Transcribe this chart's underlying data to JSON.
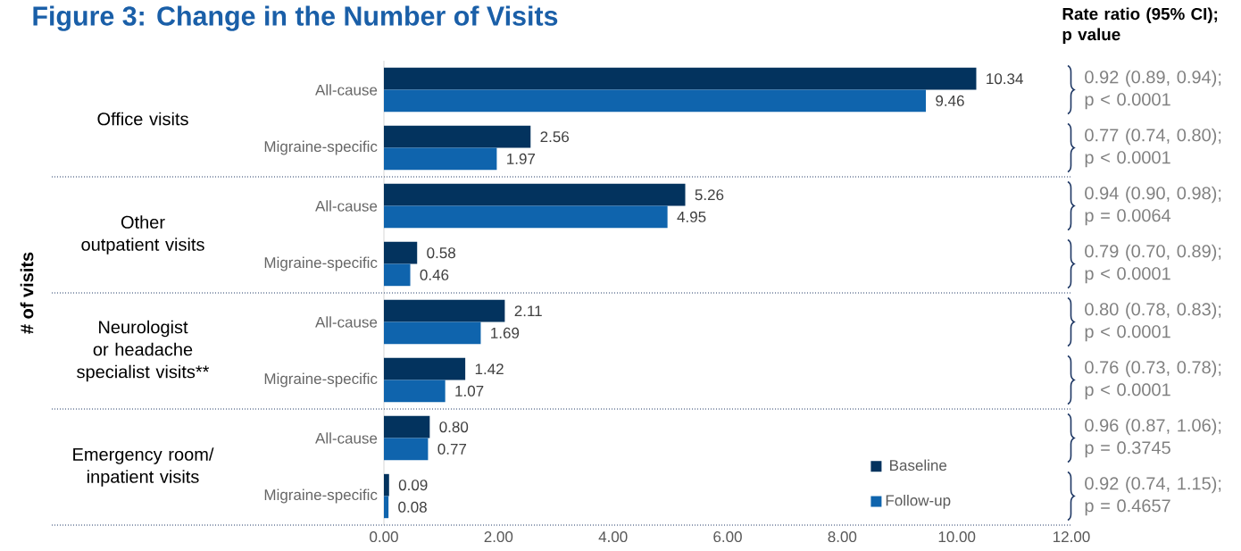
{
  "chart_data": {
    "type": "bar",
    "orientation": "horizontal",
    "title": "Figure 3: Change in the Number of Visits",
    "categories": [
      "All-cause",
      "Migraine-specific",
      "All-cause",
      "Migraine-specific",
      "All-cause",
      "Migraine-specific",
      "All-cause",
      "Migraine-specific"
    ],
    "series": [
      {
        "name": "Baseline",
        "color": "#03335e",
        "values": [
          10.34,
          2.56,
          5.26,
          0.58,
          2.11,
          1.42,
          0.8,
          0.09
        ],
        "value_labels": [
          "10.34",
          "2.56",
          "5.26",
          "0.58",
          "2.11",
          "1.42",
          "0.80",
          "0.09"
        ]
      },
      {
        "name": "Follow-up",
        "color": "#0f64ad",
        "values": [
          9.46,
          1.97,
          4.95,
          0.46,
          1.69,
          1.07,
          0.77,
          0.08
        ],
        "value_labels": [
          "9.46",
          "1.97",
          "4.95",
          "0.46",
          "1.69",
          "1.07",
          "0.77",
          "0.08"
        ]
      }
    ],
    "xlim": [
      0,
      12
    ],
    "xticks": [
      {
        "value": 0,
        "label": "0.00"
      },
      {
        "value": 2,
        "label": "2.00"
      },
      {
        "value": 4,
        "label": "4.00"
      },
      {
        "value": 6,
        "label": "6.00"
      },
      {
        "value": 8,
        "label": "8.00"
      },
      {
        "value": 10,
        "label": "10.00"
      },
      {
        "value": 12,
        "label": "12.00"
      }
    ],
    "legend": "bottom right",
    "annotations": [
      "Rate ratio (95% CI); p value",
      "Office visits",
      "Other outpatient visits",
      "Neurologist or headache specialist visits**",
      "Emergency room/ inpatient visits",
      "0.92 (0.89, 0.94); p < 0.0001",
      "0.77 (0.74, 0.80); p < 0.0001",
      "0.94 (0.90, 0.98); p = 0.0064",
      "0.79 (0.70, 0.89); p < 0.0001",
      "0.80 (0.78, 0.83); p < 0.0001",
      "0.76 (0.73, 0.78); p < 0.0001",
      "0.96 (0.87, 1.06); p = 0.3745",
      "0.92 (0.74, 1.15); p = 0.4657",
      "# of visits"
    ]
  }
}
